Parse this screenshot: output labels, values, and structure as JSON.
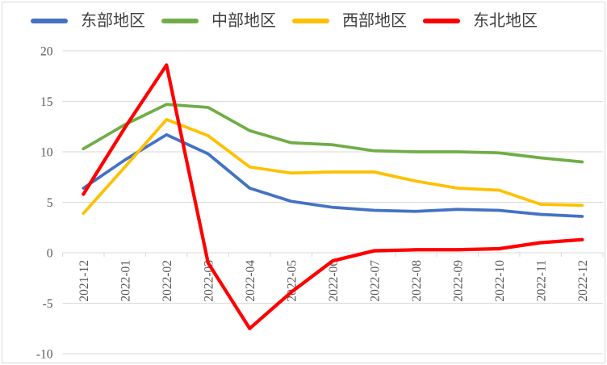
{
  "chart_data": {
    "type": "line",
    "title": "",
    "xlabel": "",
    "ylabel": "",
    "categories": [
      "2021-12",
      "2022-01",
      "2022-02",
      "2022-03",
      "2022-04",
      "2022-05",
      "2022-06",
      "2022-07",
      "2022-08",
      "2022-09",
      "2022-10",
      "2022-11",
      "2022-12"
    ],
    "series": [
      {
        "key": "east",
        "name": "东部地区",
        "color": "#4472C4",
        "values": [
          6.4,
          9.2,
          11.7,
          9.8,
          6.4,
          5.1,
          4.5,
          4.2,
          4.1,
          4.3,
          4.2,
          3.8,
          3.6
        ]
      },
      {
        "key": "central",
        "name": "中部地区",
        "color": "#70AD47",
        "values": [
          10.3,
          12.7,
          14.7,
          14.4,
          12.1,
          10.9,
          10.7,
          10.1,
          10.0,
          10.0,
          9.9,
          9.4,
          9.0
        ]
      },
      {
        "key": "west",
        "name": "西部地区",
        "color": "#FFC000",
        "values": [
          3.9,
          8.5,
          13.2,
          11.6,
          8.5,
          7.9,
          8.0,
          8.0,
          7.1,
          6.4,
          6.2,
          4.8,
          4.7
        ]
      },
      {
        "key": "northeast",
        "name": "东北地区",
        "color": "#FF0000",
        "values": [
          5.8,
          12.4,
          18.6,
          -1.0,
          -7.5,
          -3.9,
          -0.8,
          0.2,
          0.3,
          0.3,
          0.4,
          1.0,
          1.3
        ]
      }
    ],
    "ylim": [
      -10,
      20
    ],
    "ytick_step": 5,
    "yticks": [
      "-10",
      "-5",
      "0",
      "5",
      "10",
      "15",
      "20"
    ],
    "grid": "horizontal",
    "legend_position": "top"
  },
  "colors": {
    "background": "#FFFFFF",
    "border": "#D9D9D9",
    "gridline": "#D9D9D9",
    "axis_text": "#595959",
    "legend_text": "#3F3F3F"
  }
}
